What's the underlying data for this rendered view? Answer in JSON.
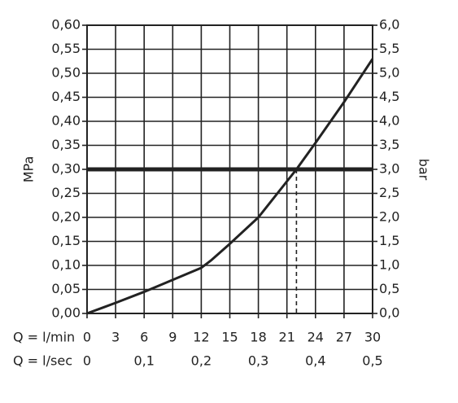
{
  "chart_data": {
    "type": "line",
    "y_label": "MPa",
    "y2_label": "bar",
    "x_row_label": "Q = l/min",
    "x2_row_label": "Q = l/sec",
    "x": [
      0,
      3,
      6,
      9,
      12,
      13,
      15,
      18,
      21,
      22,
      24,
      27,
      30
    ],
    "values": [
      0,
      0.022,
      0.045,
      0.07,
      0.095,
      0.11,
      0.145,
      0.2,
      0.275,
      0.3,
      0.355,
      0.44,
      0.53
    ],
    "color": "#222222",
    "reference_line": 0.3,
    "marker_x": 22,
    "xlim": [
      0,
      30
    ],
    "xticks": [
      0,
      3,
      6,
      9,
      12,
      15,
      18,
      21,
      24,
      27,
      30
    ],
    "x2lim": [
      0,
      0.5
    ],
    "x2ticks": [
      0,
      {
        "value": 0.1,
        "label": "0,1"
      },
      {
        "value": 0.2,
        "label": "0,2"
      },
      {
        "value": 0.3,
        "label": "0,3"
      },
      {
        "value": 0.4,
        "label": "0,4"
      },
      {
        "value": 0.5,
        "label": "0,5"
      }
    ],
    "ylim": [
      0,
      0.6
    ],
    "yticks": [
      {
        "value": 0,
        "label": "0,00"
      },
      {
        "value": 0.05,
        "label": "0,05"
      },
      {
        "value": 0.1,
        "label": "0,10"
      },
      {
        "value": 0.15,
        "label": "0,15"
      },
      {
        "value": 0.2,
        "label": "0,20"
      },
      {
        "value": 0.25,
        "label": "0,25"
      },
      {
        "value": 0.3,
        "label": "0,30"
      },
      {
        "value": 0.35,
        "label": "0,35"
      },
      {
        "value": 0.4,
        "label": "0,40"
      },
      {
        "value": 0.45,
        "label": "0,45"
      },
      {
        "value": 0.5,
        "label": "0,50"
      },
      {
        "value": 0.55,
        "label": "0,55"
      },
      {
        "value": 0.6,
        "label": "0,60"
      }
    ],
    "y2lim": [
      0,
      6
    ],
    "y2ticks": [
      {
        "value": 0,
        "label": "0,0"
      },
      {
        "value": 0.5,
        "label": "0,5"
      },
      {
        "value": 1,
        "label": "1,0"
      },
      {
        "value": 1.5,
        "label": "1,5"
      },
      {
        "value": 2,
        "label": "2,0"
      },
      {
        "value": 2.5,
        "label": "2,5"
      },
      {
        "value": 3,
        "label": "3,0"
      },
      {
        "value": 3.5,
        "label": "3,5"
      },
      {
        "value": 4,
        "label": "4,0"
      },
      {
        "value": 4.5,
        "label": "4,5"
      },
      {
        "value": 5,
        "label": "5,0"
      },
      {
        "value": 5.5,
        "label": "5,5"
      },
      {
        "value": 6,
        "label": "6,0"
      }
    ],
    "grid": true
  }
}
